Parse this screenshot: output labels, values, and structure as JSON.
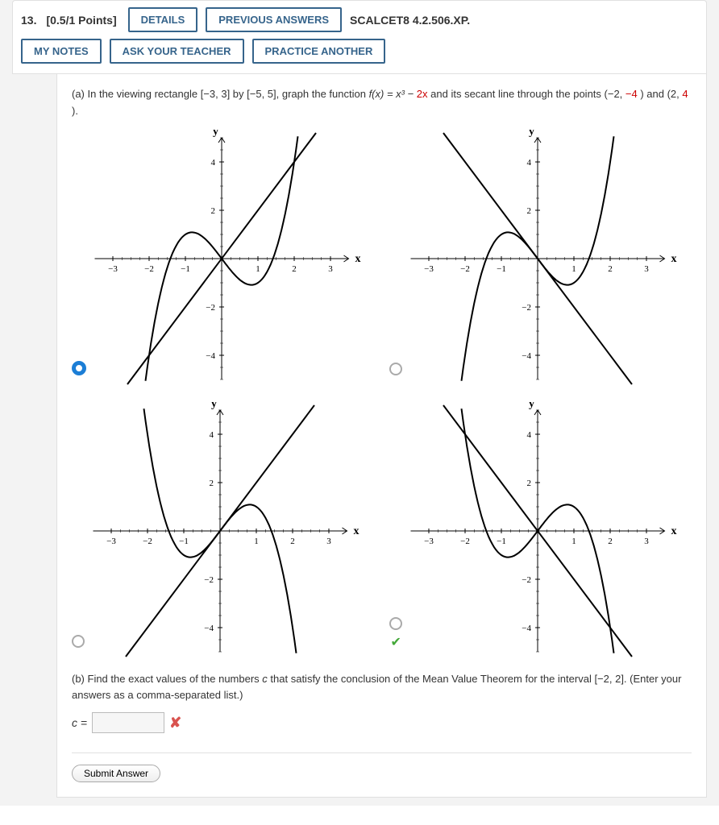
{
  "header": {
    "qnum": "13.",
    "points": "[0.5/1 Points]",
    "details_btn": "DETAILS",
    "prev_btn": "PREVIOUS ANSWERS",
    "refcode": "SCALCET8 4.2.506.XP.",
    "notes_btn": "MY NOTES",
    "teacher_btn": "ASK YOUR TEACHER",
    "practice_btn": "PRACTICE ANOTHER"
  },
  "part_a": {
    "text_pre": "(a) In the viewing rectangle [−3, 3] by [−5, 5], graph the function  ",
    "fx": "f(x) = x³ − ",
    "fx_red": "2x",
    "text_mid": "  and its secant line through the points (−2, ",
    "neg4": "−4",
    "text_mid2": ")  and  (2, ",
    "pos4": "4",
    "text_end": ")."
  },
  "charts": {
    "common": {
      "x_label": "x",
      "y_label": "y",
      "xlim": [
        -3.5,
        3.5
      ],
      "ylim": [
        -5,
        5
      ],
      "xticks": [
        -3,
        -2,
        -1,
        1,
        2,
        3
      ],
      "yticks": [
        -4,
        -2,
        2,
        4
      ],
      "axis_color": "#000000",
      "curve_color": "#000000",
      "line_color": "#000000",
      "tick_fontsize": 11,
      "label_fontsize": 14,
      "curve_width": 2,
      "line_width": 2
    },
    "options": [
      {
        "id": "opt1",
        "selected": true,
        "cubic_sign": 1,
        "cubic_linear": -2,
        "secant_slope": 2
      },
      {
        "id": "opt2",
        "selected": false,
        "cubic_sign": 1,
        "cubic_linear": -2,
        "secant_slope": -2
      },
      {
        "id": "opt3",
        "selected": false,
        "cubic_sign": -1,
        "cubic_linear": 2,
        "secant_slope": 2
      },
      {
        "id": "opt4",
        "selected": false,
        "cubic_sign": -1,
        "cubic_linear": 2,
        "secant_slope": -2,
        "correct": true
      }
    ]
  },
  "part_b": {
    "text1": "(b) Find the exact values of the numbers ",
    "c": "c",
    "text2": " that satisfy the conclusion of the Mean Value Theorem for the interval [−2, 2]. (Enter your answers as a comma-separated list.)",
    "label": "c =",
    "value": "",
    "wrong": true
  },
  "footer": {
    "submit": "Submit Answer"
  }
}
